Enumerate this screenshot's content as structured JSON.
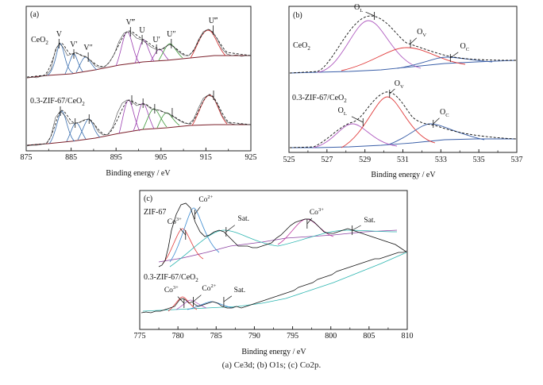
{
  "caption": "(a) Ce3d; (b) O1s; (c) Co2p.",
  "chart_data": [
    {
      "type": "line",
      "panel": "(a)",
      "xlabel": "Binding energy / eV",
      "ylabel": "",
      "xlim": [
        875,
        925
      ],
      "ticks": [
        "875",
        "885",
        "895",
        "905",
        "915",
        "925"
      ],
      "grid": false,
      "samples": [
        {
          "name": "CeO₂",
          "peaks": [
            {
              "label": "V",
              "x": 882.3
            },
            {
              "label": "V′",
              "x": 885.6
            },
            {
              "label": "V″",
              "x": 888.8
            },
            {
              "label": "V‴",
              "x": 898.2
            },
            {
              "label": "U",
              "x": 900.8
            },
            {
              "label": "U′",
              "x": 904.0
            },
            {
              "label": "U″",
              "x": 907.3
            },
            {
              "label": "U‴",
              "x": 916.6
            }
          ]
        },
        {
          "name": "0.3-ZIF-67/CeO₂",
          "peaks": [
            {
              "label": "",
              "x": 882.6
            },
            {
              "label": "",
              "x": 885.9
            },
            {
              "label": "",
              "x": 889.0
            },
            {
              "label": "",
              "x": 898.5
            },
            {
              "label": "",
              "x": 901.0
            },
            {
              "label": "",
              "x": 903.6
            },
            {
              "label": "",
              "x": 907.5
            },
            {
              "label": "",
              "x": 916.7
            }
          ]
        }
      ]
    },
    {
      "type": "line",
      "panel": "(b)",
      "xlabel": "Binding energy / eV",
      "ylabel": "",
      "xlim": [
        525,
        537
      ],
      "ticks": [
        "525",
        "527",
        "529",
        "531",
        "533",
        "535",
        "537"
      ],
      "grid": false,
      "samples": [
        {
          "name": "CeO₂",
          "peaks": [
            {
              "label": "O",
              "sub": "L",
              "x": 529.5
            },
            {
              "label": "O",
              "sub": "V",
              "x": 531.4
            },
            {
              "label": "O",
              "sub": "C",
              "x": 533.5
            }
          ]
        },
        {
          "name": "0.3-ZIF-67/CeO₂",
          "peaks": [
            {
              "label": "O",
              "sub": "L",
              "x": 528.9
            },
            {
              "label": "O",
              "sub": "V",
              "x": 530.3
            },
            {
              "label": "O",
              "sub": "C",
              "x": 532.6
            }
          ]
        }
      ]
    },
    {
      "type": "line",
      "panel": "(c)",
      "xlabel": "Binding energy / eV",
      "ylabel": "",
      "xlim": [
        775,
        810
      ],
      "ticks": [
        "775",
        "780",
        "785",
        "790",
        "795",
        "800",
        "805",
        "810"
      ],
      "grid": false,
      "samples": [
        {
          "name": "ZIF-67",
          "peaks": [
            {
              "label": "Co",
              "sup": "3+",
              "x": 781.0
            },
            {
              "label": "Co",
              "sup": "2+",
              "x": 782.2
            },
            {
              "label": "Sat.",
              "sup": "",
              "x": 786.3
            },
            {
              "label": "Co",
              "sup": "3+",
              "x": 796.9
            },
            {
              "label": "Sat.",
              "sup": "",
              "x": 802.8
            }
          ]
        },
        {
          "name": "0.3-ZIF-67/CeO₂",
          "peaks": [
            {
              "label": "Co",
              "sup": "3+",
              "x": 780.8
            },
            {
              "label": "Co",
              "sup": "2+",
              "x": 782.0
            },
            {
              "label": "Sat.",
              "sup": "",
              "x": 786.0
            }
          ]
        }
      ]
    }
  ]
}
